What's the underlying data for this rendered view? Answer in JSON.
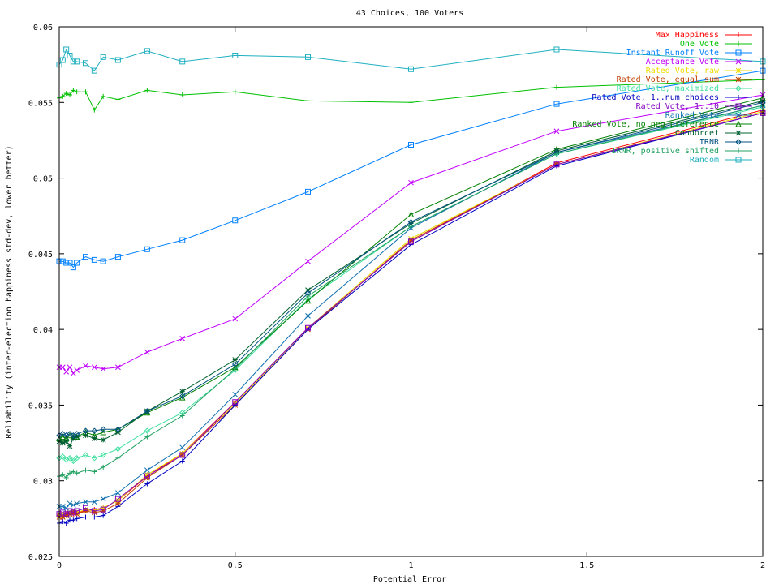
{
  "chart_data": {
    "type": "line",
    "title": "43 Choices, 100 Voters",
    "xlabel": "Potential Error",
    "ylabel": "Reliability (inter-election happiness std-dev, lower better)",
    "xlim": [
      0,
      2
    ],
    "ylim": [
      0.025,
      0.06
    ],
    "xticks": [
      "0",
      "0.5",
      "1",
      "1.5",
      "2"
    ],
    "yticks": [
      "0.025",
      "0.03",
      "0.035",
      "0.04",
      "0.045",
      "0.05",
      "0.055",
      "0.06"
    ],
    "grid": false,
    "legend_position": "top-right",
    "x": [
      0,
      0.01,
      0.02,
      0.03,
      0.04,
      0.05,
      0.075,
      0.1,
      0.125,
      0.167,
      0.25,
      0.35,
      0.5,
      0.707,
      1,
      1.414,
      2
    ],
    "series": [
      {
        "name": "Max Happiness",
        "color": "#ff0000",
        "marker": "plus",
        "values": [
          0.0278,
          0.0277,
          0.0278,
          0.0279,
          0.0278,
          0.0279,
          0.028,
          0.0281,
          0.0282,
          0.0287,
          0.0303,
          0.0318,
          0.0352,
          0.0401,
          0.0458,
          0.051,
          0.0545
        ]
      },
      {
        "name": "One Vote",
        "color": "#00c000",
        "marker": "plus",
        "values": [
          0.0553,
          0.0554,
          0.0556,
          0.0555,
          0.0558,
          0.0557,
          0.0557,
          0.0545,
          0.0554,
          0.0552,
          0.0558,
          0.0555,
          0.0557,
          0.0551,
          0.055,
          0.056,
          0.0565
        ]
      },
      {
        "name": "Instant Runoff Vote",
        "color": "#0080ff",
        "marker": "square",
        "values": [
          0.0445,
          0.0445,
          0.0444,
          0.0444,
          0.0441,
          0.0444,
          0.0448,
          0.0446,
          0.0445,
          0.0448,
          0.0453,
          0.0459,
          0.0472,
          0.0491,
          0.0522,
          0.0549,
          0.0571
        ]
      },
      {
        "name": "Acceptance Vote",
        "color": "#c000ff",
        "marker": "x",
        "values": [
          0.0375,
          0.0375,
          0.0372,
          0.0375,
          0.0371,
          0.0373,
          0.0376,
          0.0375,
          0.0374,
          0.0375,
          0.0385,
          0.0394,
          0.0407,
          0.0445,
          0.0497,
          0.0531,
          0.0555
        ]
      },
      {
        "name": "Rated Vote, raw",
        "color": "#eedd00",
        "marker": "star",
        "values": [
          0.0277,
          0.0278,
          0.0277,
          0.0279,
          0.028,
          0.0279,
          0.0281,
          0.028,
          0.0282,
          0.0287,
          0.0304,
          0.0318,
          0.0351,
          0.0401,
          0.046,
          0.0509,
          0.0544
        ]
      },
      {
        "name": "Rated Vote, equal sum",
        "color": "#c04000",
        "marker": "star",
        "values": [
          0.0276,
          0.0276,
          0.0277,
          0.0278,
          0.0279,
          0.0278,
          0.028,
          0.0279,
          0.028,
          0.0285,
          0.0302,
          0.0317,
          0.035,
          0.04,
          0.0459,
          0.0509,
          0.0543
        ]
      },
      {
        "name": "Rated Vote, maximized",
        "color": "#40e0a0",
        "marker": "diamond",
        "values": [
          0.0315,
          0.0316,
          0.0314,
          0.0315,
          0.0313,
          0.0315,
          0.0317,
          0.0315,
          0.0317,
          0.0321,
          0.0333,
          0.0345,
          0.0373,
          0.042,
          0.0468,
          0.0516,
          0.0547
        ]
      },
      {
        "name": "Rated Vote, 1..num choices",
        "color": "#0000c0",
        "marker": "plus",
        "values": [
          0.0272,
          0.0273,
          0.0272,
          0.0274,
          0.0274,
          0.0275,
          0.0276,
          0.0276,
          0.0277,
          0.0283,
          0.0298,
          0.0313,
          0.035,
          0.04,
          0.0456,
          0.0508,
          0.0543
        ]
      },
      {
        "name": "Rated Vote, 1..10",
        "color": "#8000c0",
        "marker": "square",
        "values": [
          0.0278,
          0.0279,
          0.0278,
          0.028,
          0.0279,
          0.028,
          0.0282,
          0.028,
          0.0281,
          0.0288,
          0.0303,
          0.0317,
          0.0352,
          0.0401,
          0.0458,
          0.0509,
          0.0543
        ]
      },
      {
        "name": "Ranked Vote",
        "color": "#1070b0",
        "marker": "x",
        "values": [
          0.0283,
          0.0283,
          0.0282,
          0.0285,
          0.0284,
          0.0285,
          0.0286,
          0.0286,
          0.0288,
          0.0292,
          0.0307,
          0.0322,
          0.0357,
          0.0409,
          0.0467,
          0.0517,
          0.0548
        ]
      },
      {
        "name": "Ranked Vote, no neg preference",
        "color": "#008000",
        "marker": "triangle",
        "values": [
          0.0328,
          0.0329,
          0.0328,
          0.033,
          0.0329,
          0.0329,
          0.0332,
          0.033,
          0.0332,
          0.0334,
          0.0345,
          0.0355,
          0.0375,
          0.0419,
          0.0476,
          0.0519,
          0.0553
        ]
      },
      {
        "name": "Condorcet",
        "color": "#006030",
        "marker": "star",
        "values": [
          0.0326,
          0.0325,
          0.0326,
          0.0323,
          0.0328,
          0.0329,
          0.033,
          0.0328,
          0.0327,
          0.0332,
          0.0346,
          0.0359,
          0.038,
          0.0426,
          0.047,
          0.0518,
          0.0551
        ]
      },
      {
        "name": "IRNR",
        "color": "#005080",
        "marker": "diamond",
        "values": [
          0.033,
          0.0331,
          0.033,
          0.0331,
          0.033,
          0.0331,
          0.0333,
          0.0333,
          0.0334,
          0.0334,
          0.0346,
          0.0356,
          0.0377,
          0.0424,
          0.0471,
          0.0517,
          0.055
        ]
      },
      {
        "name": "IRNR, positive shifted",
        "color": "#20a060",
        "marker": "plus",
        "values": [
          0.0303,
          0.0304,
          0.0302,
          0.0305,
          0.0306,
          0.0305,
          0.0307,
          0.0306,
          0.0309,
          0.0315,
          0.0329,
          0.0343,
          0.0374,
          0.0422,
          0.0468,
          0.0516,
          0.0548
        ]
      },
      {
        "name": "Random",
        "color": "#20b0c0",
        "marker": "square",
        "values": [
          0.0575,
          0.0578,
          0.0585,
          0.0581,
          0.0577,
          0.0577,
          0.0576,
          0.0571,
          0.058,
          0.0578,
          0.0584,
          0.0577,
          0.0581,
          0.058,
          0.0572,
          0.0585,
          0.0577
        ]
      }
    ]
  }
}
